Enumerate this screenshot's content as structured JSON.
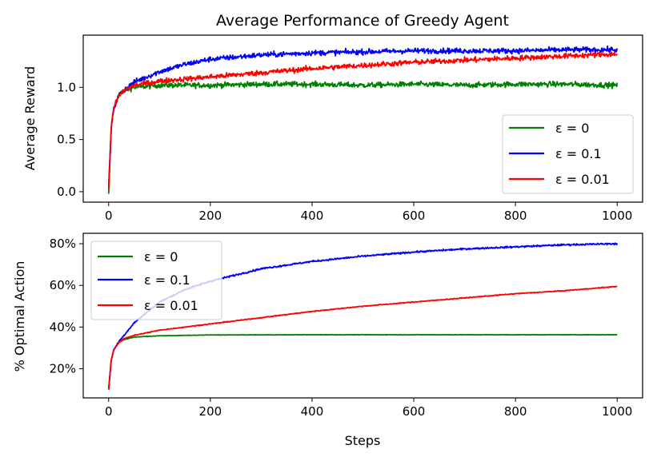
{
  "chart_data": [
    {
      "type": "line",
      "title": "Average Performance of Greedy Agent",
      "xlabel": "",
      "ylabel": "Average Reward",
      "xlim": [
        -50,
        1050
      ],
      "ylim": [
        -0.1,
        1.5
      ],
      "xticks": [
        0,
        200,
        400,
        600,
        800,
        1000
      ],
      "xtick_labels": [
        "0",
        "200",
        "400",
        "600",
        "800",
        "1000"
      ],
      "yticks": [
        0.0,
        0.5,
        1.0
      ],
      "ytick_labels": [
        "0.0",
        "0.5",
        "1.0"
      ],
      "legend_position": "lower right",
      "series": [
        {
          "name": "ε = 0",
          "eps": "0",
          "color": "#008000",
          "x": [
            0,
            5,
            10,
            20,
            30,
            50,
            100,
            200,
            300,
            400,
            500,
            600,
            700,
            800,
            900,
            1000
          ],
          "y": [
            -0.02,
            0.6,
            0.8,
            0.93,
            0.97,
            1.0,
            1.02,
            1.02,
            1.03,
            1.03,
            1.02,
            1.03,
            1.02,
            1.03,
            1.03,
            1.02
          ],
          "noise": 0.025
        },
        {
          "name": "ε = 0.1",
          "eps": "0.1",
          "color": "#0000ff",
          "x": [
            0,
            5,
            10,
            20,
            30,
            50,
            100,
            150,
            200,
            300,
            400,
            500,
            600,
            700,
            800,
            900,
            1000
          ],
          "y": [
            0.05,
            0.6,
            0.8,
            0.92,
            0.97,
            1.05,
            1.15,
            1.22,
            1.27,
            1.31,
            1.33,
            1.34,
            1.35,
            1.35,
            1.35,
            1.36,
            1.36
          ],
          "noise": 0.025
        },
        {
          "name": "ε = 0.01",
          "eps": "0.01",
          "color": "#ff0000",
          "x": [
            0,
            5,
            10,
            20,
            30,
            50,
            100,
            150,
            200,
            300,
            400,
            500,
            600,
            700,
            800,
            900,
            1000
          ],
          "y": [
            0.02,
            0.6,
            0.8,
            0.92,
            0.97,
            1.02,
            1.06,
            1.08,
            1.1,
            1.14,
            1.18,
            1.21,
            1.24,
            1.26,
            1.28,
            1.3,
            1.32
          ],
          "noise": 0.025
        }
      ]
    },
    {
      "type": "line",
      "title": "",
      "xlabel": "Steps",
      "ylabel": "% Optimal Action",
      "xlim": [
        -50,
        1050
      ],
      "ylim": [
        6,
        85
      ],
      "xticks": [
        0,
        200,
        400,
        600,
        800,
        1000
      ],
      "xtick_labels": [
        "0",
        "200",
        "400",
        "600",
        "800",
        "1000"
      ],
      "yticks": [
        20,
        40,
        60,
        80
      ],
      "ytick_labels": [
        "20%",
        "40%",
        "60%",
        "80%"
      ],
      "legend_position": "upper left",
      "series": [
        {
          "name": "ε = 0",
          "eps": "0",
          "color": "#008000",
          "x": [
            0,
            5,
            10,
            20,
            30,
            50,
            100,
            200,
            400,
            600,
            800,
            1000
          ],
          "y": [
            10,
            24,
            29,
            32.5,
            34,
            35.2,
            35.8,
            36.2,
            36.3,
            36.3,
            36.3,
            36.3
          ],
          "noise": 0.1
        },
        {
          "name": "ε = 0.1",
          "eps": "0.1",
          "color": "#0000ff",
          "x": [
            0,
            5,
            10,
            20,
            30,
            50,
            100,
            150,
            200,
            300,
            400,
            500,
            600,
            700,
            800,
            900,
            1000
          ],
          "y": [
            10,
            24,
            29,
            33,
            36,
            42,
            52,
            58,
            62,
            68,
            71.5,
            74,
            76,
            77.5,
            78.5,
            79.5,
            80
          ],
          "noise": 0.4
        },
        {
          "name": "ε = 0.01",
          "eps": "0.01",
          "color": "#ff0000",
          "x": [
            0,
            5,
            10,
            20,
            30,
            50,
            100,
            200,
            300,
            400,
            500,
            600,
            700,
            800,
            900,
            1000
          ],
          "y": [
            10,
            24,
            29,
            32.5,
            34.5,
            36,
            38.5,
            41.5,
            44.5,
            47.5,
            50,
            52,
            54,
            56,
            57.5,
            59.5
          ],
          "noise": 0.2
        }
      ]
    }
  ]
}
